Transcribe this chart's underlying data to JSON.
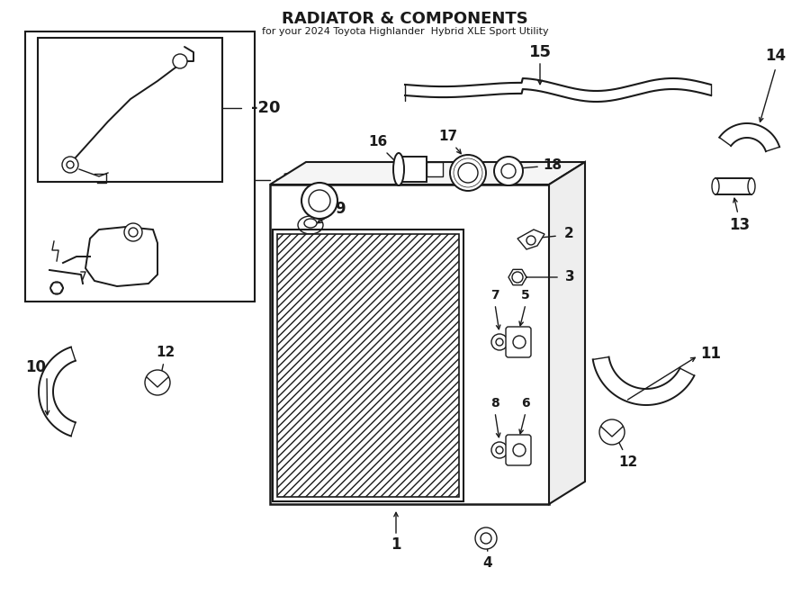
{
  "title": "RADIATOR & COMPONENTS",
  "subtitle": "for your 2024 Toyota Highlander  Hybrid XLE Sport Utility",
  "bg_color": "#ffffff",
  "line_color": "#1a1a1a",
  "fig_width": 9.0,
  "fig_height": 6.61,
  "dpi": 100
}
